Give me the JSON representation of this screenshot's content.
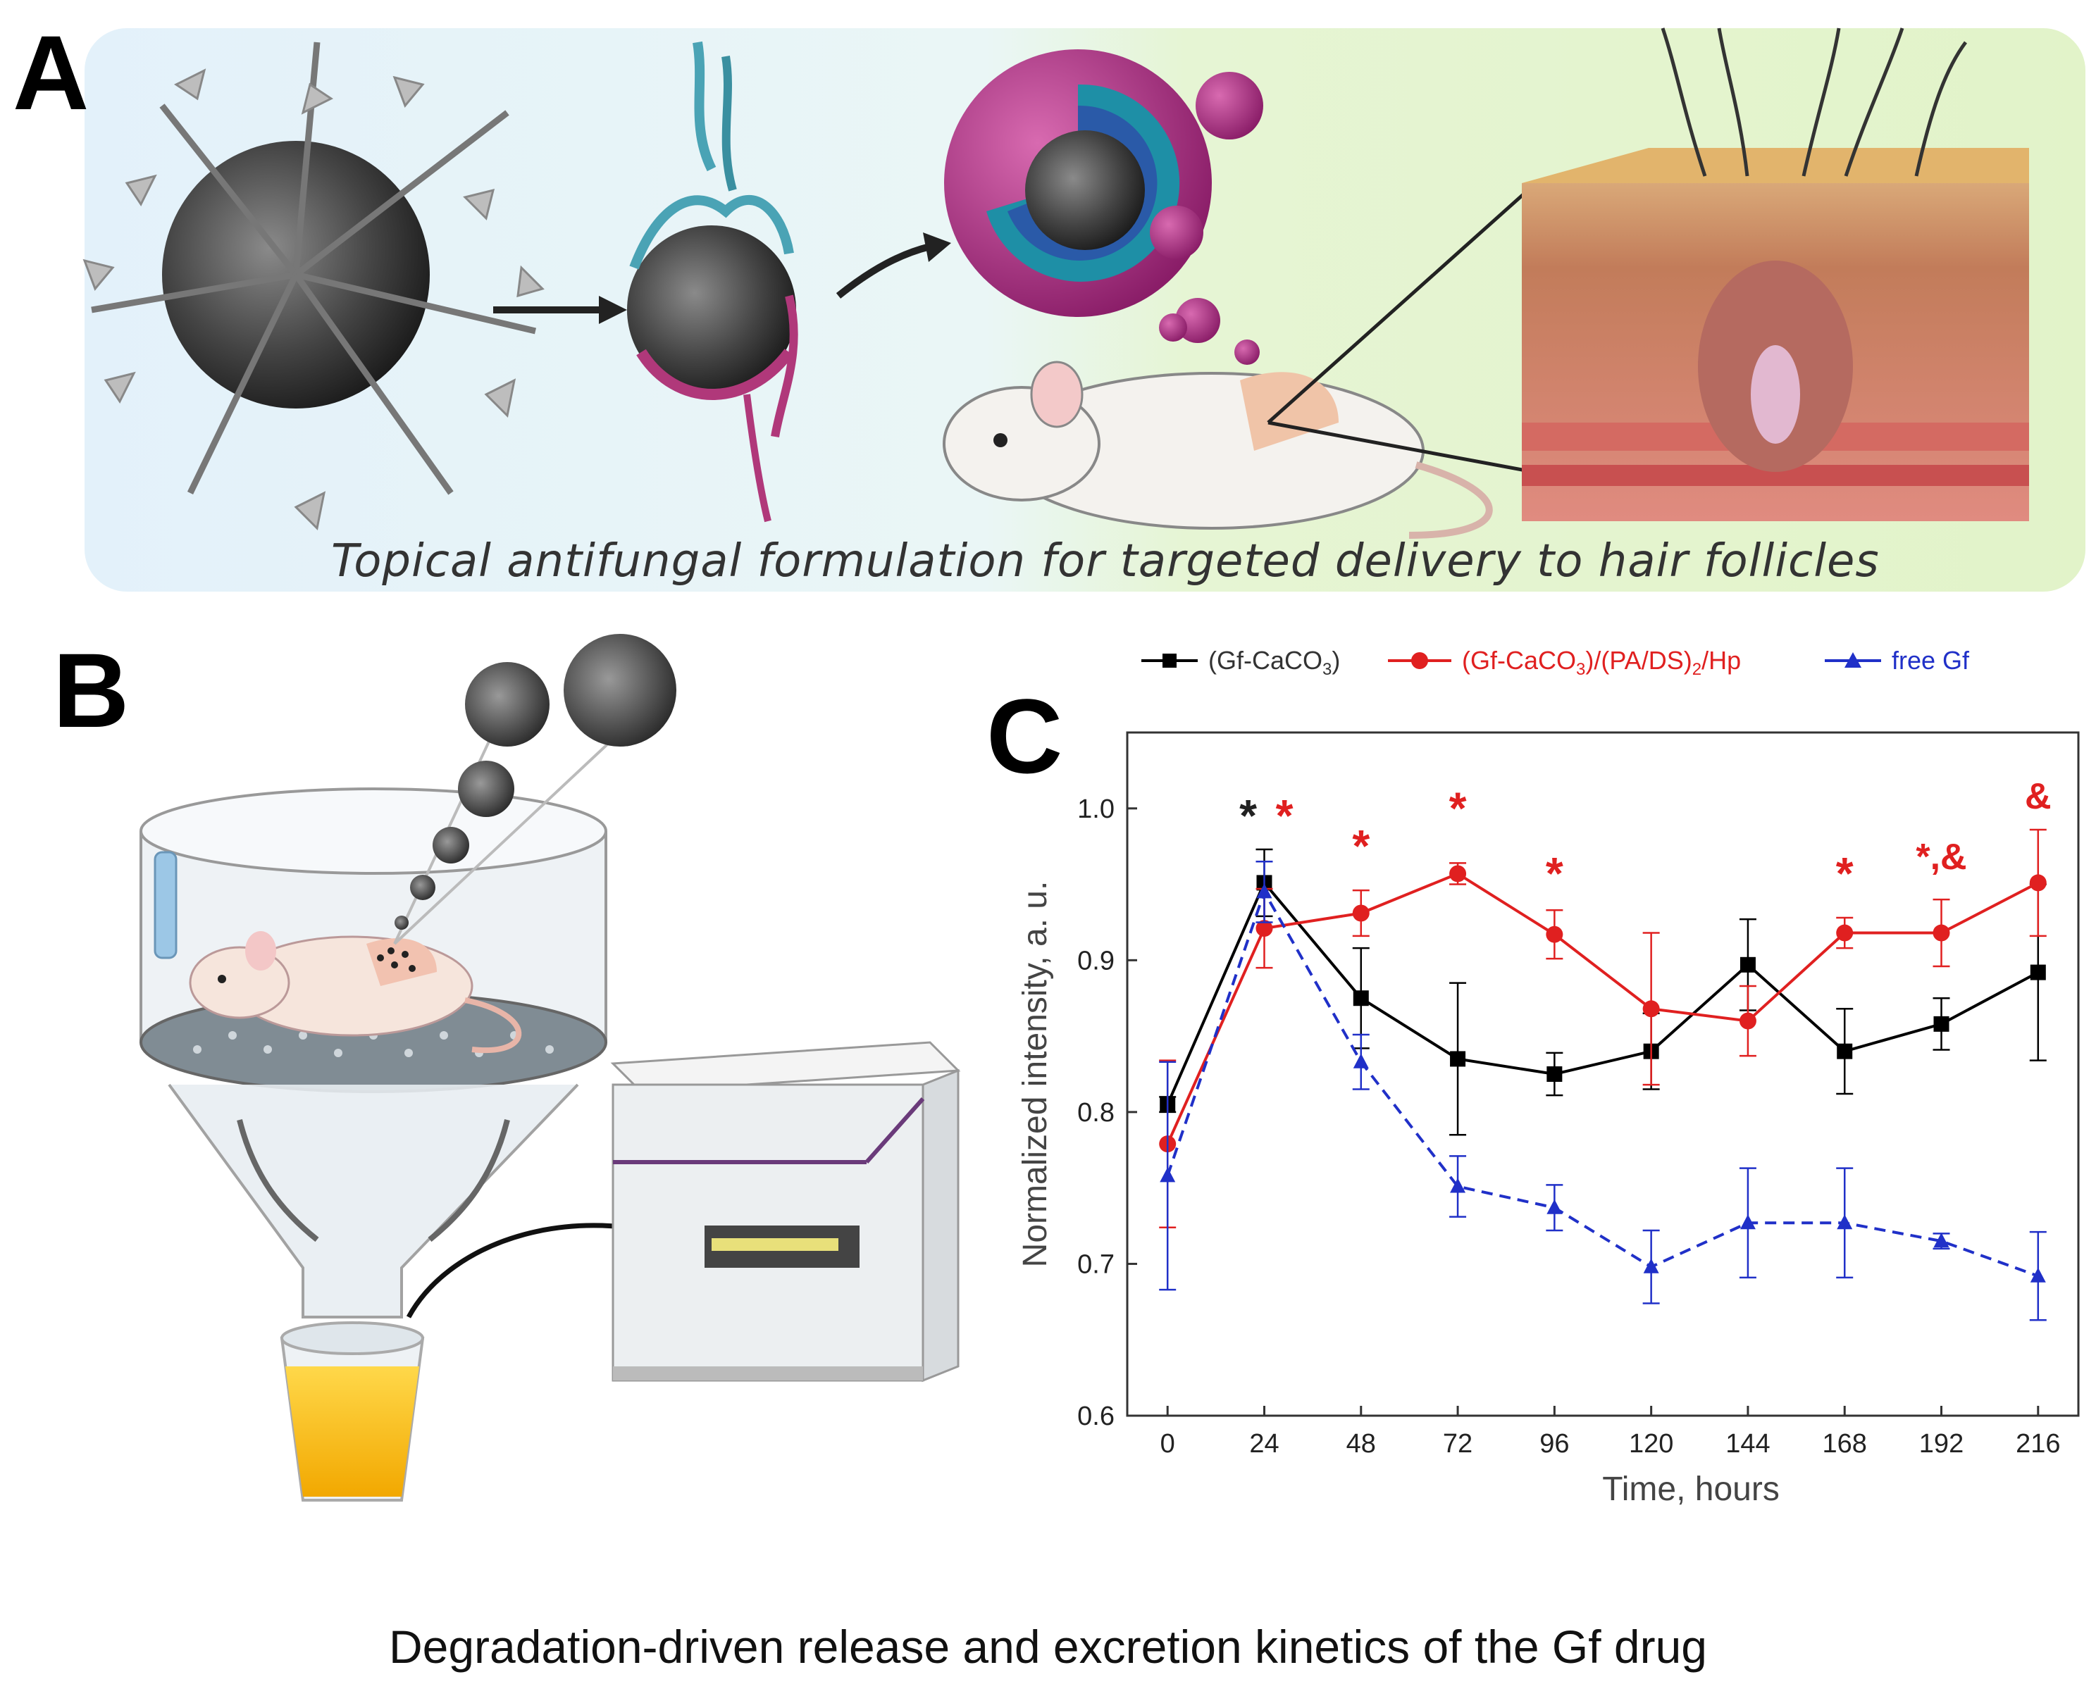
{
  "panels": {
    "a_label": "A",
    "b_label": "B",
    "c_label": "C"
  },
  "panel_a": {
    "caption": "Topical antifungal formulation for targeted delivery to hair follicles"
  },
  "bottom_caption": "Degradation-driven release and excretion kinetics of the Gf drug",
  "chart_data": {
    "type": "line",
    "title": "",
    "xlabel": "Time, hours",
    "ylabel": "Normalized  intensity, a. u.",
    "x": [
      0,
      24,
      48,
      72,
      96,
      120,
      144,
      168,
      192,
      216
    ],
    "xticks": [
      "0",
      "24",
      "48",
      "72",
      "96",
      "120",
      "144",
      "168",
      "192",
      "216"
    ],
    "yticks": [
      "0.6",
      "0.7",
      "0.8",
      "0.9",
      "1.0"
    ],
    "xlim": [
      -10,
      226
    ],
    "ylim": [
      0.6,
      1.05
    ],
    "grid": false,
    "legend_position": "top",
    "series": [
      {
        "name": "(Gf-CaCO3)",
        "legend_main": "(Gf-CaCO",
        "legend_sub": "3",
        "legend_tail": ")",
        "color": "#000000",
        "marker": "square",
        "dash": "solid",
        "values": [
          0.805,
          0.951,
          0.875,
          0.835,
          0.825,
          0.84,
          0.897,
          0.84,
          0.858,
          0.892
        ],
        "errors": [
          0.005,
          0.022,
          0.033,
          0.05,
          0.014,
          0.025,
          0.03,
          0.028,
          0.017,
          0.058
        ]
      },
      {
        "name": "(Gf-CaCO3)/(PA/DS)2/Hp",
        "legend_main": "(Gf-CaCO",
        "legend_sub": "3",
        "legend_tail": ")/(PA/DS)",
        "legend_sub2": "2",
        "legend_tail2": "/Hp",
        "color": "#e02020",
        "marker": "circle",
        "dash": "solid",
        "values": [
          0.779,
          0.921,
          0.931,
          0.957,
          0.917,
          0.868,
          0.86,
          0.918,
          0.918,
          0.951
        ],
        "errors": [
          0.055,
          0.026,
          0.015,
          0.007,
          0.016,
          0.05,
          0.023,
          0.01,
          0.022,
          0.035
        ]
      },
      {
        "name": "free Gf",
        "legend_main": "free Gf",
        "color": "#2030c8",
        "marker": "triangle",
        "dash": "dashed",
        "values": [
          0.758,
          0.945,
          0.833,
          0.751,
          0.737,
          0.698,
          0.727,
          0.727,
          0.715,
          0.692
        ],
        "errors": [
          0.075,
          0.02,
          0.018,
          0.02,
          0.015,
          0.024,
          0.036,
          0.036,
          0.005,
          0.029
        ]
      }
    ],
    "annotations": [
      {
        "text": "*",
        "x": 20,
        "y": 0.985,
        "color": "#222222"
      },
      {
        "text": "*",
        "x": 29,
        "y": 0.985,
        "color": "#e02020"
      },
      {
        "text": "*",
        "x": 48,
        "y": 0.965,
        "color": "#e02020"
      },
      {
        "text": "*",
        "x": 72,
        "y": 0.99,
        "color": "#e02020"
      },
      {
        "text": "*",
        "x": 96,
        "y": 0.947,
        "color": "#e02020"
      },
      {
        "text": "*",
        "x": 168,
        "y": 0.947,
        "color": "#e02020"
      },
      {
        "text": "*,&",
        "x": 192,
        "y": 0.96,
        "color": "#e02020"
      },
      {
        "text": "&",
        "x": 216,
        "y": 1.0,
        "color": "#e02020"
      }
    ]
  }
}
